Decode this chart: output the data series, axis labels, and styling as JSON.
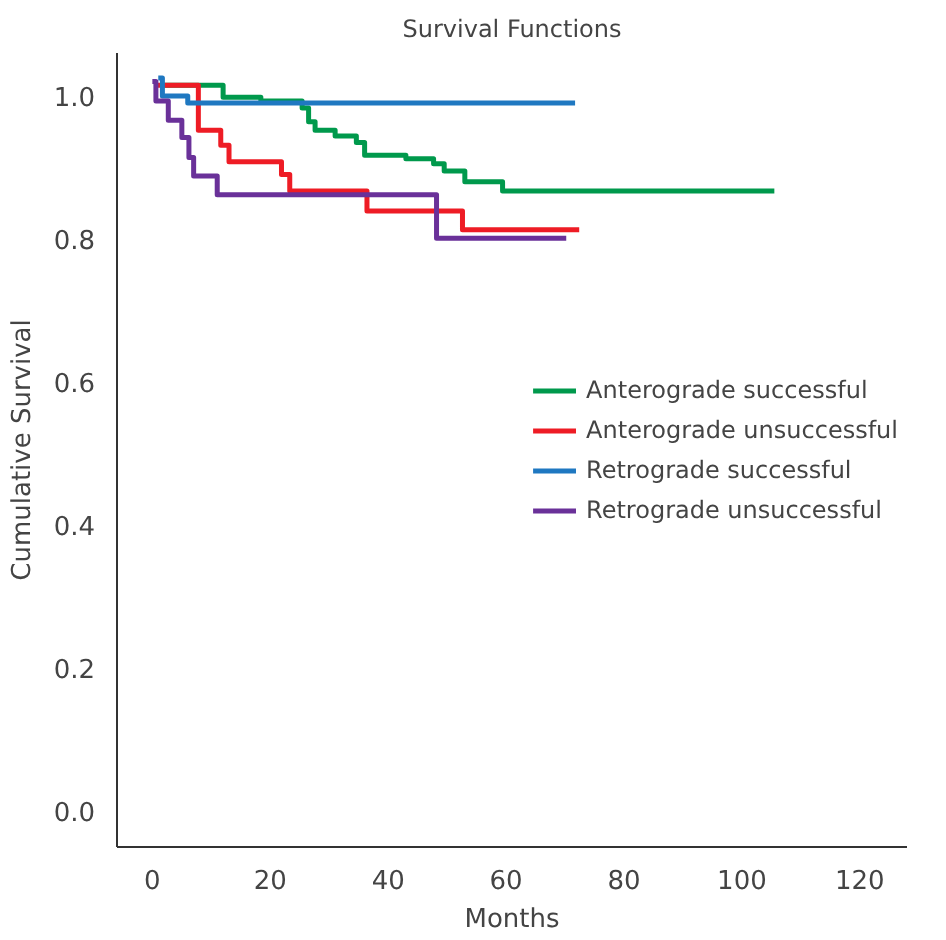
{
  "chart_data": {
    "type": "step",
    "title": "Survival Functions",
    "xlabel": "Months",
    "ylabel": "Cumulative Survival",
    "xlim": [
      -6,
      128
    ],
    "ylim": [
      -0.05,
      1.06
    ],
    "xticks": [
      0,
      20,
      40,
      60,
      80,
      100,
      120
    ],
    "yticks": [
      {
        "value": 0,
        "label": "0.0"
      },
      0.2,
      0.4,
      0.6,
      0.8,
      {
        "value": 1,
        "label": "1.0"
      }
    ],
    "grid": false,
    "legend": "right",
    "line_style": "solid",
    "series": [
      {
        "name": "Anterograde successful",
        "color": "#00994c",
        "x": [
          2,
          12,
          18.4,
          25.4,
          26.5,
          27.6,
          31,
          34.6,
          36,
          43,
          47.7,
          49.5,
          53,
          59.4,
          105.5
        ],
        "values": [
          1.015,
          0.998,
          0.993,
          0.983,
          0.964,
          0.952,
          0.944,
          0.935,
          0.917,
          0.912,
          0.905,
          0.895,
          0.88,
          0.867,
          0.867
        ]
      },
      {
        "name": "Anterograde unsuccessful",
        "color": "#ee1c25",
        "x": [
          0.7,
          7.8,
          11.6,
          13,
          21.9,
          23.3,
          36.4,
          52.6,
          72.4
        ],
        "values": [
          1.015,
          0.952,
          0.931,
          0.908,
          0.89,
          0.867,
          0.839,
          0.813,
          0.813
        ]
      },
      {
        "name": "Retrograde successful",
        "color": "#1f78c1",
        "x": [
          1,
          1.7,
          6,
          71.7
        ],
        "values": [
          1.025,
          1.0,
          0.99,
          0.99
        ]
      },
      {
        "name": "Retrograde unsuccessful",
        "color": "#6a3199",
        "x": [
          0,
          0.6,
          2.7,
          5,
          6.2,
          7,
          11,
          48.2,
          70.2
        ],
        "values": [
          1.02,
          0.993,
          0.966,
          0.942,
          0.914,
          0.888,
          0.862,
          0.801,
          0.801
        ]
      }
    ]
  }
}
